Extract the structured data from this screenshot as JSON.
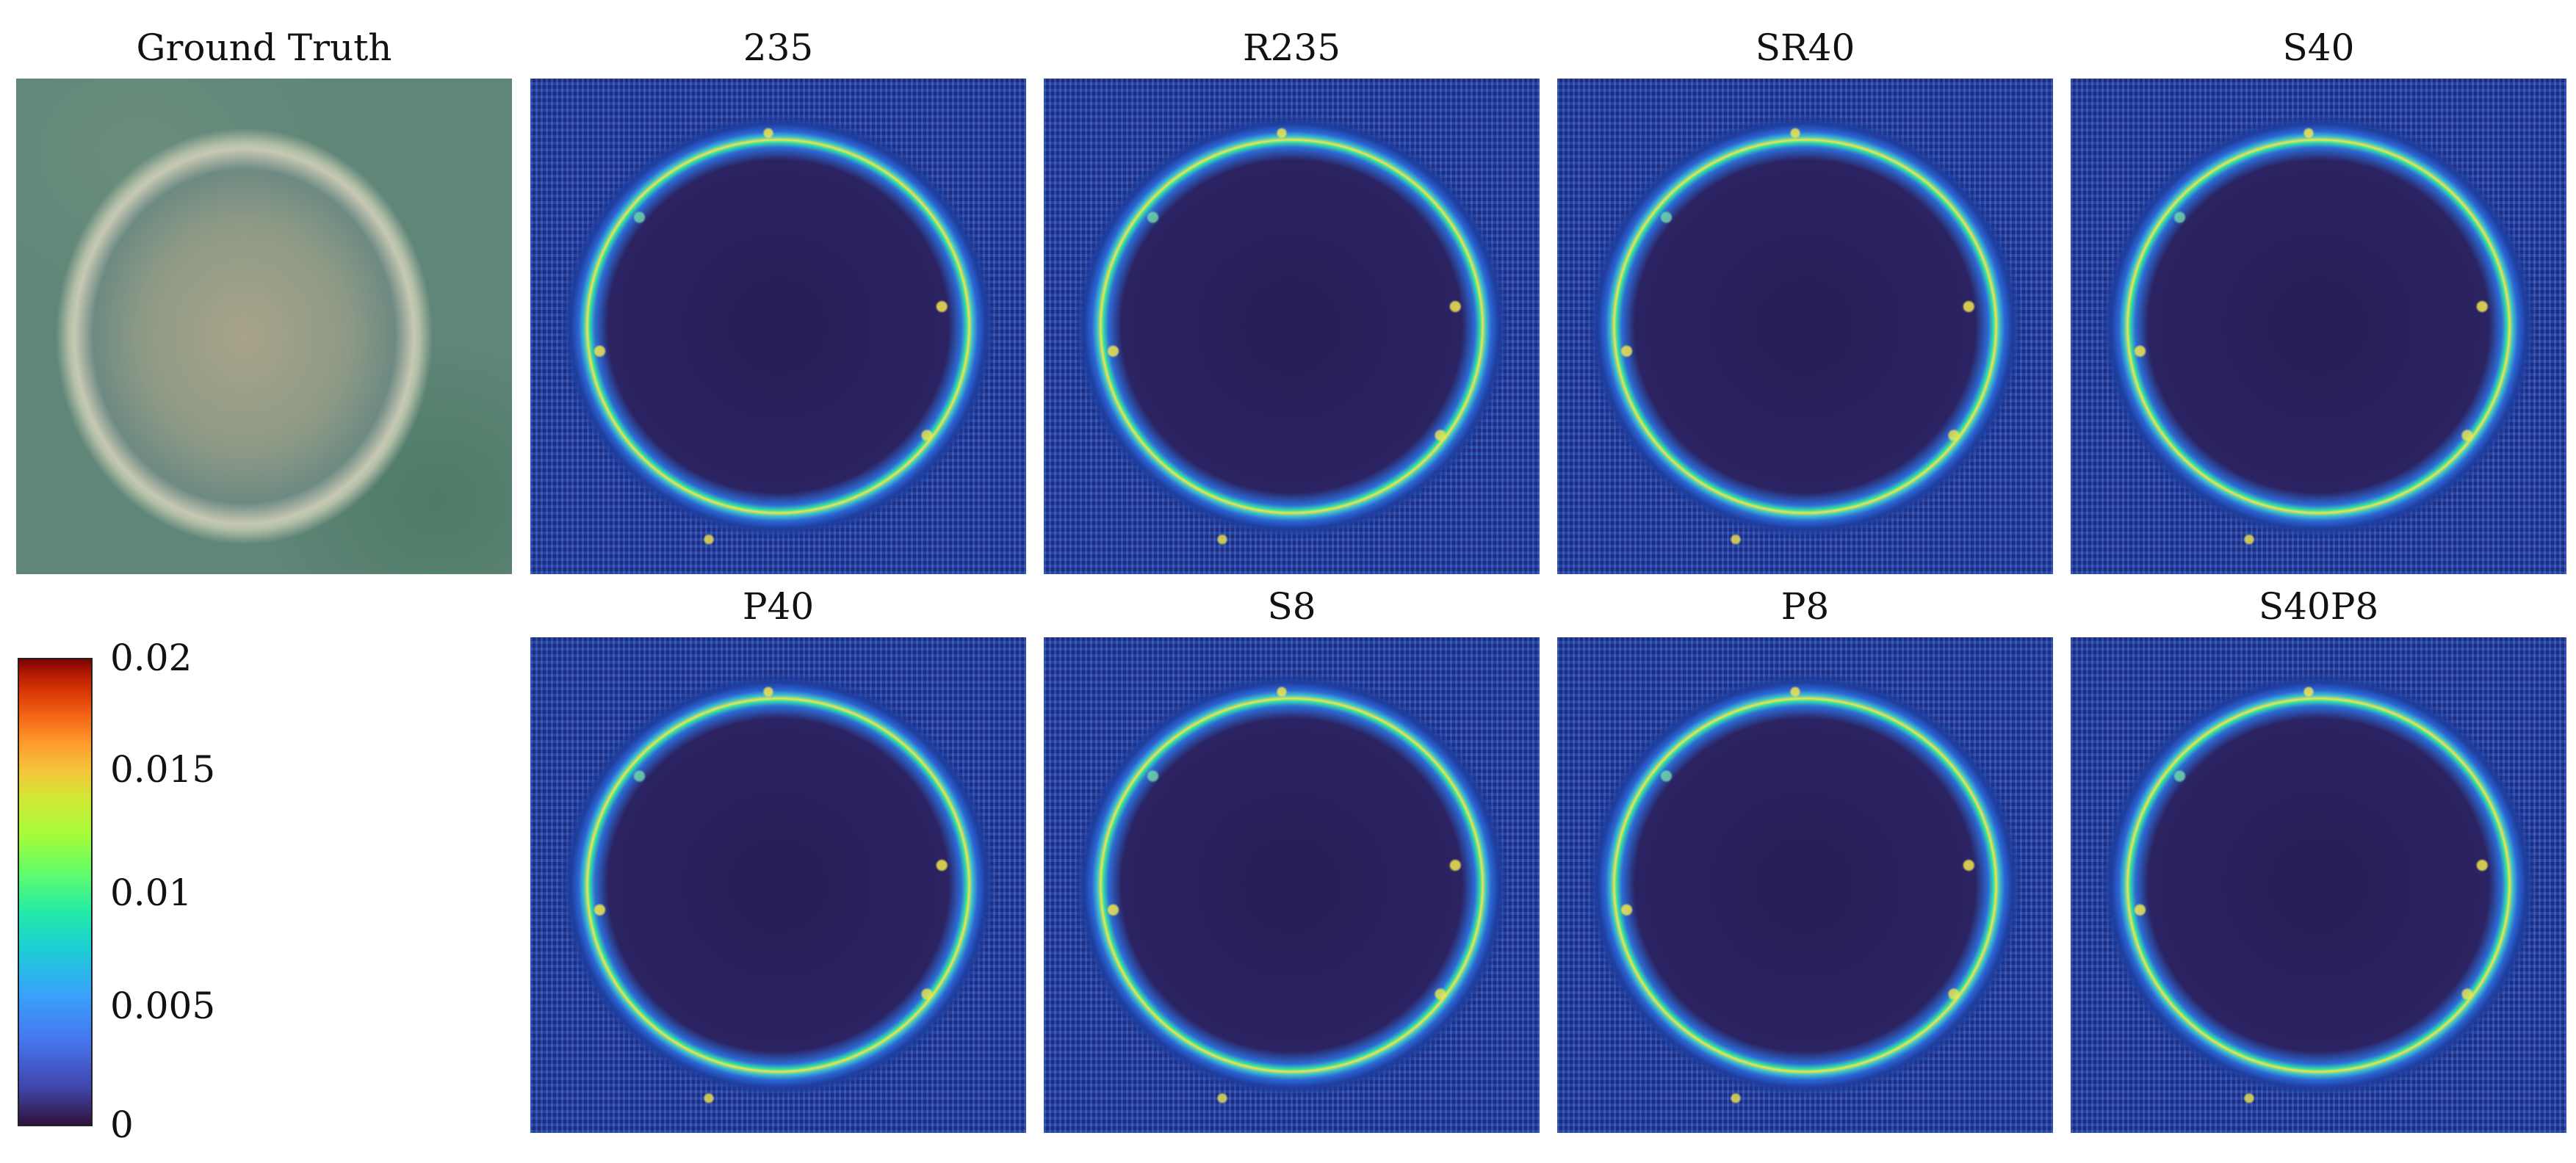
{
  "panels": {
    "ground_truth": "Ground Truth",
    "row1": [
      "235",
      "R235",
      "SR40",
      "S40"
    ],
    "row2": [
      "P40",
      "S8",
      "P8",
      "S40P8"
    ]
  },
  "colorbar": {
    "colormap": "turbo",
    "range": [
      0,
      0.02
    ],
    "ticks": [
      "0.02",
      "0.015",
      "0.01",
      "0.005",
      "0"
    ]
  }
}
